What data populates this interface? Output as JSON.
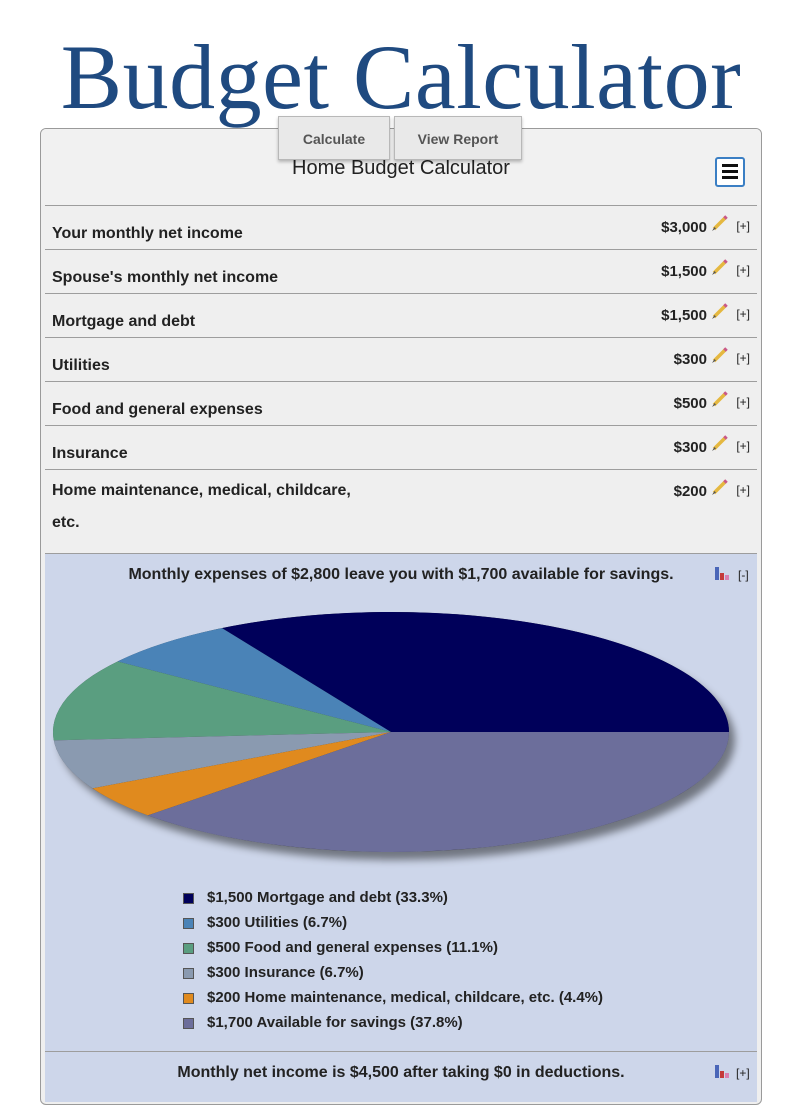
{
  "page": {
    "title": "Budget Calculator"
  },
  "toolbar": {
    "calculate_label": "Calculate",
    "view_report_label": "View Report"
  },
  "calculator": {
    "title": "Home Budget Calculator",
    "menu_icon": "hamburger-icon"
  },
  "rows": [
    {
      "label": "Your monthly net income",
      "value": "$3,000",
      "add": "[+]"
    },
    {
      "label": "Spouse's monthly net income",
      "value": "$1,500",
      "add": "[+]"
    },
    {
      "label": "Mortgage and debt",
      "value": "$1,500",
      "add": "[+]"
    },
    {
      "label": "Utilities",
      "value": "$300",
      "add": "[+]"
    },
    {
      "label": "Food and general expenses",
      "value": "$500",
      "add": "[+]"
    },
    {
      "label": "Insurance",
      "value": "$300",
      "add": "[+]"
    },
    {
      "label": "Home maintenance, medical, childcare, etc.",
      "value": "$200",
      "add": "[+]"
    }
  ],
  "summary": {
    "text": "Monthly expenses of $2,800 leave you with $1,700 available for savings.",
    "toggle": "[-]"
  },
  "chart_data": {
    "type": "pie",
    "slices": [
      {
        "label": "$1,500 Mortgage and debt (33.3%)",
        "value": 1500,
        "percent": 33.3,
        "color": "#00005a"
      },
      {
        "label": "$300 Utilities (6.7%)",
        "value": 300,
        "percent": 6.7,
        "color": "#4a83b7"
      },
      {
        "label": "$500 Food and general expenses (11.1%)",
        "value": 500,
        "percent": 11.1,
        "color": "#5a9e80"
      },
      {
        "label": "$300 Insurance (6.7%)",
        "value": 300,
        "percent": 6.7,
        "color": "#8a9ab0"
      },
      {
        "label": "$200 Home maintenance, medical, childcare, etc. (4.4%)",
        "value": 200,
        "percent": 4.4,
        "color": "#e08a1e"
      },
      {
        "label": "$1,700 Available for savings (37.8%)",
        "value": 1700,
        "percent": 37.8,
        "color": "#6c6e9b"
      }
    ]
  },
  "footer": {
    "text": "Monthly net income is $4,500 after taking $0 in deductions.",
    "toggle": "[+]"
  }
}
